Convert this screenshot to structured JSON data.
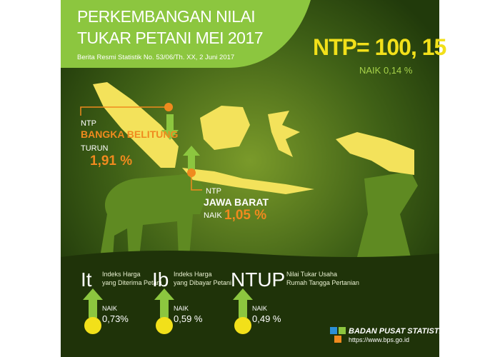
{
  "header": {
    "title_lines": [
      "PERKEMBANGAN NILAI",
      "TUKAR PETANI MEI 2017"
    ],
    "subtitle": "Berita Resmi Statistik No. 53/06/Th. XX, 2 Juni 2017"
  },
  "headline": {
    "value": "NTP= 100, 15",
    "change": "NAIK 0,14 %"
  },
  "regions": [
    {
      "label": "NTP",
      "name": "BANGKA BELITUNG",
      "direction": "TURUN",
      "change": "1,91 %"
    },
    {
      "label": "NTP",
      "name": "JAWA BARAT",
      "direction": "NAIK",
      "change": "1,05 %"
    }
  ],
  "indicators": [
    {
      "code": "It",
      "description": [
        "Indeks Harga",
        "yang Diterima Petani"
      ],
      "direction": "NAIK",
      "change": "0,73%"
    },
    {
      "code": "Ib",
      "description": [
        "Indeks Harga",
        "yang Dibayar Petani"
      ],
      "direction": "NAIK",
      "change": "0,59 %"
    },
    {
      "code": "NTUP",
      "description": [
        "Nilai Tukar Usaha",
        "Rumah Tangga Pertanian"
      ],
      "direction": "NAIK",
      "change": "0,49 %"
    }
  ],
  "footer": {
    "org": "BADAN PUSAT STATISTIK",
    "url": "https://www.bps.go.id"
  }
}
